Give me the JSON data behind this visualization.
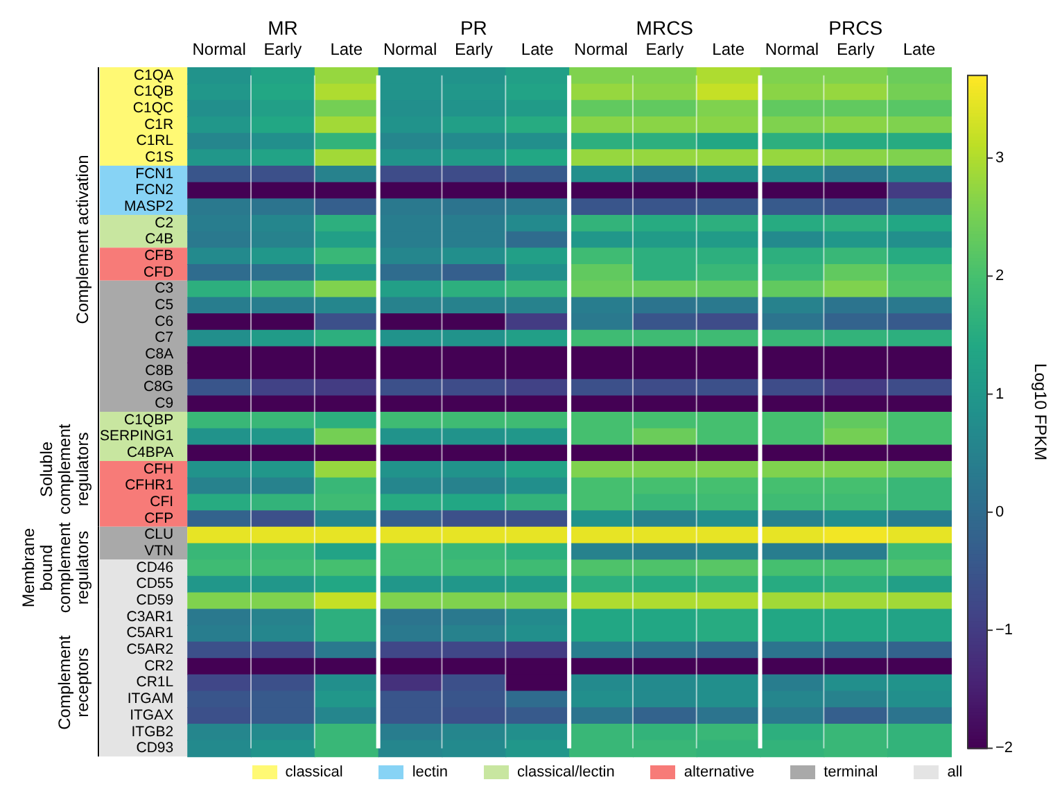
{
  "chart_data": {
    "type": "heatmap",
    "categories": [
      "Normal",
      "Early",
      "Late",
      "Normal",
      "Early",
      "Late",
      "Normal",
      "Early",
      "Late",
      "Normal",
      "Early",
      "Late"
    ],
    "y_categories": [
      "C1QA",
      "C1QB",
      "C1QC",
      "C1R",
      "C1RL",
      "C1S",
      "FCN1",
      "FCN2",
      "MASP2",
      "C2",
      "C4B",
      "CFB",
      "CFD",
      "C3",
      "C5",
      "C6",
      "C7",
      "C8A",
      "C8B",
      "C8G",
      "C9",
      "C1QBP",
      "SERPING1",
      "C4BPA",
      "CFH",
      "CFHR1",
      "CFI",
      "CFP",
      "CLU",
      "VTN",
      "CD46",
      "CD55",
      "CD59",
      "C3AR1",
      "C5AR1",
      "C5AR2",
      "CR2",
      "CR1L",
      "ITGAM",
      "ITGAX",
      "ITGB2",
      "CD93"
    ],
    "cells": [
      [
        0.9,
        1.3,
        2.8,
        0.9,
        0.9,
        1.2,
        2.6,
        2.6,
        3.0,
        2.6,
        2.6,
        2.4
      ],
      [
        1.0,
        1.4,
        3.0,
        0.9,
        1.0,
        1.3,
        2.8,
        2.7,
        3.2,
        2.7,
        2.8,
        2.5
      ],
      [
        0.8,
        1.2,
        2.5,
        0.8,
        0.9,
        1.1,
        2.3,
        2.3,
        2.6,
        2.3,
        2.3,
        2.2
      ],
      [
        1.0,
        1.4,
        2.9,
        0.9,
        1.2,
        1.5,
        2.7,
        2.7,
        2.7,
        2.6,
        2.7,
        2.6
      ],
      [
        0.6,
        0.8,
        1.7,
        0.6,
        0.7,
        0.8,
        1.6,
        1.6,
        1.4,
        1.6,
        1.5,
        1.5
      ],
      [
        1.0,
        1.3,
        2.9,
        0.9,
        1.1,
        1.4,
        2.8,
        2.8,
        2.8,
        2.8,
        2.7,
        2.6
      ],
      [
        -0.5,
        -0.6,
        0.5,
        -0.7,
        -0.7,
        -0.4,
        0.8,
        0.4,
        0.8,
        0.7,
        0.3,
        0.6
      ],
      [
        -2,
        -2,
        -2,
        -2,
        -2,
        -2,
        -2,
        -2,
        -2,
        -2,
        -2,
        -1.0
      ],
      [
        0.3,
        0.2,
        -0.3,
        0.3,
        0.2,
        0.3,
        -0.5,
        -0.5,
        -0.4,
        -0.4,
        -0.5,
        0.0
      ],
      [
        0.4,
        0.6,
        1.6,
        0.4,
        0.4,
        0.7,
        1.7,
        1.5,
        1.6,
        1.5,
        1.6,
        1.4
      ],
      [
        0.3,
        0.5,
        1.2,
        0.4,
        0.4,
        0.0,
        1.0,
        1.1,
        1.1,
        0.7,
        1.0,
        0.8
      ],
      [
        0.7,
        1.0,
        1.8,
        0.6,
        0.8,
        1.2,
        1.9,
        1.6,
        1.6,
        1.6,
        1.8,
        1.5
      ],
      [
        0.0,
        0.1,
        1.0,
        0.0,
        -0.3,
        0.8,
        2.3,
        1.6,
        1.8,
        1.8,
        2.3,
        2.0
      ],
      [
        1.6,
        1.9,
        2.6,
        1.2,
        1.6,
        1.8,
        2.4,
        2.4,
        2.3,
        2.3,
        2.6,
        2.1
      ],
      [
        0.4,
        0.4,
        0.6,
        0.5,
        0.5,
        0.5,
        0.4,
        0.2,
        0.3,
        0.5,
        0.2,
        0.3
      ],
      [
        -2,
        -2,
        -0.6,
        -2,
        -2,
        -1.0,
        0.3,
        -0.5,
        -0.7,
        0.2,
        -0.2,
        -0.4
      ],
      [
        0.8,
        1.1,
        1.6,
        0.9,
        0.9,
        1.2,
        1.9,
        1.9,
        1.9,
        1.8,
        1.7,
        1.6
      ],
      [
        -2,
        -2,
        -2,
        -2,
        -2,
        -2,
        -2,
        -2,
        -2,
        -2,
        -2,
        -2
      ],
      [
        -2,
        -2,
        -2,
        -2,
        -2,
        -2,
        -2,
        -2,
        -2,
        -2,
        -2,
        -2
      ],
      [
        -0.5,
        -0.9,
        -1.0,
        -0.6,
        -0.7,
        -0.9,
        -0.6,
        -0.7,
        -0.6,
        -0.7,
        -1.0,
        -0.7
      ],
      [
        -2,
        -2,
        -2,
        -2,
        -2,
        -2,
        -2,
        -2,
        -2,
        -2,
        -2,
        -2
      ],
      [
        1.8,
        1.8,
        1.6,
        1.9,
        1.9,
        1.9,
        2.0,
        2.0,
        2.0,
        2.0,
        2.3,
        2.0
      ],
      [
        0.9,
        1.0,
        2.5,
        0.9,
        0.9,
        1.0,
        2.0,
        2.4,
        2.0,
        2.0,
        2.5,
        2.0
      ],
      [
        -2,
        -2,
        -2,
        -2,
        -2,
        -2,
        -2,
        -2,
        -2,
        -2,
        -2,
        -2
      ],
      [
        0.9,
        1.0,
        2.8,
        0.9,
        0.9,
        1.3,
        2.6,
        2.6,
        2.6,
        2.6,
        2.6,
        2.4
      ],
      [
        0.5,
        0.5,
        1.8,
        0.6,
        0.5,
        0.8,
        2.0,
        2.0,
        2.0,
        2.0,
        2.0,
        1.8
      ],
      [
        1.5,
        1.7,
        1.9,
        1.5,
        1.4,
        1.7,
        2.0,
        1.8,
        1.9,
        1.9,
        1.9,
        1.8
      ],
      [
        -0.2,
        -0.6,
        0.6,
        -0.3,
        -0.6,
        -0.6,
        0.9,
        0.5,
        0.8,
        0.5,
        0.8,
        0.4
      ],
      [
        3.5,
        3.5,
        3.5,
        3.5,
        3.5,
        3.5,
        3.5,
        3.5,
        3.5,
        3.5,
        3.6,
        3.5
      ],
      [
        1.8,
        1.8,
        1.3,
        1.9,
        1.8,
        1.6,
        0.5,
        0.4,
        0.6,
        0.4,
        0.4,
        1.9
      ],
      [
        1.9,
        1.9,
        2.0,
        1.9,
        1.9,
        1.9,
        2.1,
        2.1,
        2.2,
        2.0,
        2.0,
        2.1
      ],
      [
        1.0,
        1.0,
        1.4,
        1.0,
        1.0,
        1.1,
        1.6,
        1.5,
        1.6,
        1.5,
        1.6,
        1.2
      ],
      [
        2.6,
        2.6,
        3.2,
        2.6,
        2.6,
        2.6,
        3.0,
        3.0,
        3.0,
        2.9,
        2.9,
        2.9
      ],
      [
        0.3,
        0.5,
        1.6,
        0.2,
        0.3,
        0.7,
        1.4,
        1.4,
        1.5,
        1.4,
        1.4,
        1.3
      ],
      [
        0.4,
        0.6,
        1.6,
        0.3,
        0.5,
        0.8,
        1.4,
        1.4,
        1.5,
        1.4,
        1.4,
        1.3
      ],
      [
        -0.6,
        -0.7,
        0.3,
        -0.8,
        -0.8,
        -1.0,
        0.4,
        0.2,
        0.0,
        0.2,
        0.0,
        -0.2
      ],
      [
        -2,
        -2,
        -2,
        -2,
        -2,
        -2,
        -2,
        -2,
        -2,
        -2,
        -2,
        -2
      ],
      [
        -0.8,
        -0.6,
        0.8,
        -1.2,
        -0.6,
        -2,
        0.7,
        0.7,
        0.8,
        0.4,
        0.8,
        0.9
      ],
      [
        -0.5,
        -0.4,
        1.0,
        -0.5,
        -0.5,
        0.0,
        0.8,
        0.7,
        0.8,
        0.6,
        0.5,
        0.8
      ],
      [
        -0.6,
        -0.4,
        0.6,
        -0.5,
        -0.6,
        -0.4,
        0.2,
        -0.2,
        0.2,
        0.3,
        -0.3,
        0.2
      ],
      [
        0.6,
        0.7,
        1.8,
        0.4,
        0.6,
        0.8,
        1.8,
        1.7,
        1.8,
        1.6,
        1.8,
        1.7
      ],
      [
        0.7,
        0.9,
        1.8,
        0.6,
        0.7,
        1.0,
        1.8,
        1.8,
        1.7,
        1.7,
        1.8,
        1.7
      ]
    ],
    "clim": [
      -2,
      3.7
    ],
    "cticks": [
      -2,
      -1,
      0,
      1,
      2,
      3
    ],
    "clabel": "Log10 FPKM",
    "annotations": [
      "MR",
      "PR",
      "MRCS",
      "PRCS",
      "Complement activation",
      "Soluble complement regulators",
      "Membrane bound complement regulators",
      "Complement receptors",
      "classical",
      "lectin",
      "classical/lectin",
      "alternative",
      "terminal",
      "all"
    ]
  }
}
